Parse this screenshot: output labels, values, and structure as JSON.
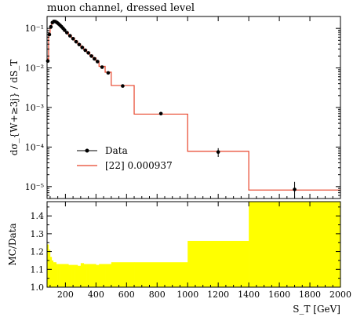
{
  "title": "muon channel, dressed level",
  "chart_data": [
    {
      "type": "line",
      "panel": "main",
      "ylabel": "dσ_{W+≥3j} / dS_T",
      "yscale": "log",
      "ylim": [
        5e-06,
        0.2
      ],
      "y_ticks": [
        {
          "value": 0.1,
          "label": "10⁻¹"
        },
        {
          "value": 0.01,
          "label": "10⁻²"
        },
        {
          "value": 0.001,
          "label": "10⁻³"
        },
        {
          "value": 0.0001,
          "label": "10⁻⁴"
        },
        {
          "value": 1e-05,
          "label": "10⁻⁵"
        }
      ],
      "xlim": [
        80,
        2000
      ],
      "legend_position": "center-left",
      "series": [
        {
          "name": "Data",
          "style": "points-with-errors",
          "color": "#000000",
          "x": [
            85,
            95,
            105,
            115,
            125,
            135,
            145,
            155,
            165,
            175,
            185,
            195,
            210,
            230,
            250,
            270,
            290,
            310,
            330,
            350,
            370,
            390,
            410,
            440,
            480,
            575,
            825,
            1200,
            1700
          ],
          "y": [
            0.015,
            0.07,
            0.11,
            0.14,
            0.15,
            0.148,
            0.14,
            0.13,
            0.12,
            0.11,
            0.1,
            0.09,
            0.078,
            0.065,
            0.055,
            0.046,
            0.039,
            0.033,
            0.028,
            0.024,
            0.02,
            0.017,
            0.0145,
            0.0105,
            0.0075,
            0.0035,
            0.0007,
            7.5e-05,
            8.5e-06
          ],
          "yerr_rel": [
            0.05,
            0.03,
            0.02,
            0.02,
            0.02,
            0.02,
            0.02,
            0.02,
            0.02,
            0.02,
            0.02,
            0.02,
            0.02,
            0.02,
            0.02,
            0.02,
            0.02,
            0.03,
            0.03,
            0.03,
            0.03,
            0.03,
            0.03,
            0.04,
            0.05,
            0.06,
            0.08,
            0.25,
            0.55
          ]
        },
        {
          "name": "[22] 0.000937",
          "style": "step",
          "color": "#e8452b",
          "bin_edges": [
            80,
            90,
            100,
            110,
            120,
            130,
            140,
            150,
            160,
            170,
            180,
            190,
            200,
            220,
            240,
            260,
            280,
            300,
            320,
            340,
            360,
            380,
            400,
            420,
            460,
            500,
            650,
            1000,
            1400,
            2000
          ],
          "values": [
            0.017,
            0.075,
            0.115,
            0.145,
            0.155,
            0.152,
            0.145,
            0.135,
            0.125,
            0.114,
            0.103,
            0.093,
            0.08,
            0.067,
            0.057,
            0.048,
            0.04,
            0.034,
            0.029,
            0.025,
            0.021,
            0.018,
            0.015,
            0.011,
            0.0078,
            0.0036,
            0.00068,
            7.8e-05,
            8.2e-06
          ]
        }
      ]
    },
    {
      "type": "area",
      "panel": "ratio",
      "ylabel": "MC/Data",
      "xlabel": "S_T [GeV]",
      "xlim": [
        80,
        2000
      ],
      "ylim": [
        1.0,
        1.48
      ],
      "x_ticks": [
        200,
        400,
        600,
        800,
        1000,
        1200,
        1400,
        1600,
        1800,
        2000
      ],
      "y_ticks": [
        1.0,
        1.1,
        1.2,
        1.3,
        1.4
      ],
      "series": [
        {
          "name": "[22] 0.000937",
          "style": "band",
          "color": "#ffff00",
          "bin_edges": [
            80,
            90,
            100,
            110,
            120,
            130,
            140,
            150,
            160,
            170,
            180,
            190,
            200,
            220,
            240,
            260,
            280,
            300,
            320,
            340,
            360,
            380,
            400,
            420,
            460,
            500,
            650,
            1000,
            1400,
            2000
          ],
          "lower": [
            1.0,
            1.0,
            1.0,
            1.0,
            1.0,
            1.0,
            1.0,
            1.0,
            1.0,
            1.0,
            1.0,
            1.0,
            1.0,
            1.0,
            1.0,
            1.0,
            1.0,
            1.0,
            1.0,
            1.0,
            1.0,
            1.0,
            1.0,
            1.0,
            1.0,
            1.0,
            1.0,
            1.0,
            1.0
          ],
          "upper": [
            1.24,
            1.21,
            1.17,
            1.15,
            1.14,
            1.14,
            1.13,
            1.13,
            1.13,
            1.13,
            1.13,
            1.13,
            1.13,
            1.125,
            1.125,
            1.125,
            1.12,
            1.135,
            1.13,
            1.13,
            1.13,
            1.13,
            1.125,
            1.13,
            1.13,
            1.14,
            1.14,
            1.26,
            1.48
          ]
        }
      ]
    }
  ]
}
